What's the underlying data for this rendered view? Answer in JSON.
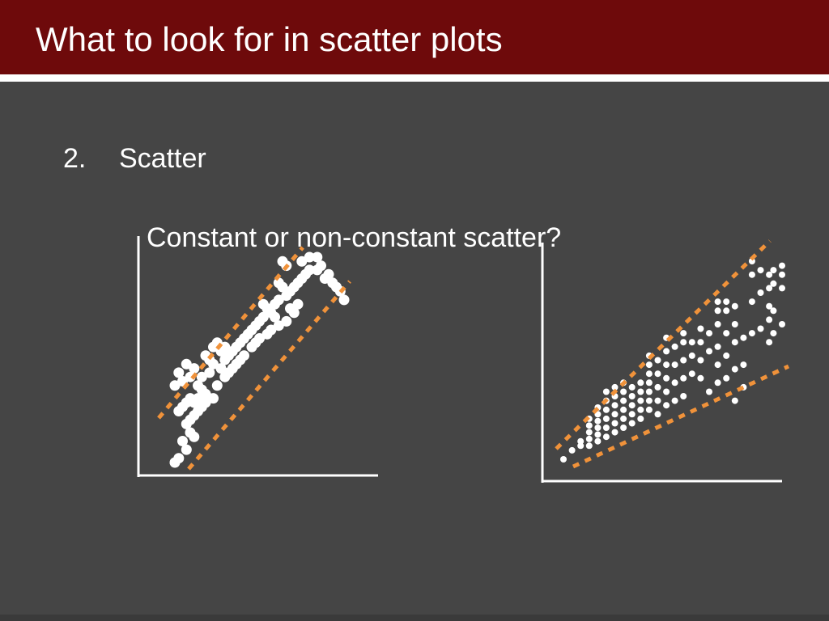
{
  "slide": {
    "title": "What to look for in scatter plots",
    "bullet": {
      "number": "2.",
      "text": "Scatter"
    },
    "question": "Constant or non-constant scatter?"
  },
  "colors": {
    "title_bar": "#6e0a0b",
    "background": "#454545",
    "points": "#ffffff",
    "envelope": "#f0923a",
    "axes": "#ffffff"
  },
  "chart_data": [
    {
      "type": "scatter",
      "title": "",
      "xlabel": "",
      "ylabel": "",
      "grid": false,
      "envelope": "parallel dashed lines (constant scatter)",
      "points": [
        [
          4,
          4
        ],
        [
          6,
          6
        ],
        [
          10,
          10
        ],
        [
          8,
          14
        ],
        [
          14,
          16
        ],
        [
          12,
          18
        ],
        [
          10,
          22
        ],
        [
          12,
          24
        ],
        [
          14,
          26
        ],
        [
          16,
          28
        ],
        [
          18,
          30
        ],
        [
          20,
          32
        ],
        [
          22,
          34
        ],
        [
          24,
          34
        ],
        [
          6,
          28
        ],
        [
          8,
          30
        ],
        [
          10,
          32
        ],
        [
          14,
          32
        ],
        [
          16,
          34
        ],
        [
          20,
          36
        ],
        [
          18,
          38
        ],
        [
          12,
          34
        ],
        [
          4,
          40
        ],
        [
          8,
          42
        ],
        [
          12,
          44
        ],
        [
          16,
          40
        ],
        [
          18,
          44
        ],
        [
          22,
          46
        ],
        [
          24,
          50
        ],
        [
          28,
          48
        ],
        [
          30,
          52
        ],
        [
          32,
          54
        ],
        [
          28,
          56
        ],
        [
          30,
          58
        ],
        [
          34,
          56
        ],
        [
          36,
          58
        ],
        [
          38,
          60
        ],
        [
          40,
          62
        ],
        [
          42,
          64
        ],
        [
          44,
          66
        ],
        [
          46,
          68
        ],
        [
          48,
          70
        ],
        [
          50,
          72
        ],
        [
          54,
          74
        ],
        [
          56,
          72
        ],
        [
          52,
          76
        ],
        [
          50,
          78
        ],
        [
          56,
          78
        ],
        [
          58,
          80
        ],
        [
          62,
          82
        ],
        [
          64,
          84
        ],
        [
          60,
          86
        ],
        [
          58,
          88
        ],
        [
          66,
          86
        ],
        [
          68,
          88
        ],
        [
          70,
          90
        ],
        [
          72,
          92
        ],
        [
          74,
          94
        ],
        [
          78,
          94
        ],
        [
          80,
          96
        ],
        [
          82,
          90
        ],
        [
          84,
          92
        ],
        [
          86,
          88
        ],
        [
          88,
          86
        ],
        [
          90,
          84
        ],
        [
          92,
          80
        ],
        [
          70,
          98
        ],
        [
          74,
          100
        ],
        [
          78,
          100
        ],
        [
          24,
          58
        ],
        [
          26,
          60
        ],
        [
          20,
          54
        ],
        [
          22,
          52
        ],
        [
          34,
          48
        ],
        [
          36,
          50
        ],
        [
          38,
          52
        ],
        [
          40,
          54
        ],
        [
          44,
          58
        ],
        [
          46,
          60
        ],
        [
          48,
          62
        ],
        [
          52,
          64
        ],
        [
          54,
          66
        ],
        [
          58,
          68
        ],
        [
          62,
          70
        ],
        [
          66,
          74
        ],
        [
          30,
          44
        ],
        [
          32,
          46
        ],
        [
          26,
          40
        ],
        [
          14,
          48
        ],
        [
          10,
          50
        ],
        [
          6,
          46
        ],
        [
          62,
          96
        ],
        [
          60,
          98
        ],
        [
          64,
          76
        ],
        [
          68,
          78
        ]
      ]
    },
    {
      "type": "scatter",
      "title": "",
      "xlabel": "",
      "ylabel": "",
      "grid": false,
      "envelope": "diverging dashed lines (non-constant scatter)",
      "points": [
        [
          2,
          4
        ],
        [
          6,
          8
        ],
        [
          10,
          10
        ],
        [
          10,
          12
        ],
        [
          14,
          10
        ],
        [
          14,
          13
        ],
        [
          14,
          16
        ],
        [
          14,
          19
        ],
        [
          14,
          22
        ],
        [
          18,
          12
        ],
        [
          18,
          15
        ],
        [
          18,
          18
        ],
        [
          18,
          21
        ],
        [
          18,
          24
        ],
        [
          18,
          27
        ],
        [
          22,
          14
        ],
        [
          22,
          18
        ],
        [
          22,
          22
        ],
        [
          22,
          26
        ],
        [
          22,
          30
        ],
        [
          22,
          34
        ],
        [
          26,
          16
        ],
        [
          26,
          20
        ],
        [
          26,
          24
        ],
        [
          26,
          28
        ],
        [
          26,
          32
        ],
        [
          26,
          36
        ],
        [
          30,
          18
        ],
        [
          30,
          22
        ],
        [
          30,
          26
        ],
        [
          30,
          30
        ],
        [
          30,
          34
        ],
        [
          30,
          38
        ],
        [
          34,
          20
        ],
        [
          34,
          24
        ],
        [
          34,
          28
        ],
        [
          34,
          32
        ],
        [
          34,
          36
        ],
        [
          38,
          22
        ],
        [
          38,
          26
        ],
        [
          38,
          30
        ],
        [
          38,
          34
        ],
        [
          38,
          38
        ],
        [
          42,
          26
        ],
        [
          42,
          30
        ],
        [
          42,
          34
        ],
        [
          42,
          38
        ],
        [
          42,
          42
        ],
        [
          42,
          46
        ],
        [
          42,
          50
        ],
        [
          46,
          24
        ],
        [
          46,
          30
        ],
        [
          46,
          36
        ],
        [
          46,
          42
        ],
        [
          46,
          48
        ],
        [
          50,
          28
        ],
        [
          50,
          34
        ],
        [
          50,
          40
        ],
        [
          50,
          46
        ],
        [
          50,
          52
        ],
        [
          50,
          58
        ],
        [
          54,
          30
        ],
        [
          54,
          38
        ],
        [
          54,
          46
        ],
        [
          54,
          54
        ],
        [
          58,
          32
        ],
        [
          58,
          40
        ],
        [
          58,
          48
        ],
        [
          58,
          56
        ],
        [
          58,
          60
        ],
        [
          62,
          42
        ],
        [
          62,
          50
        ],
        [
          62,
          56
        ],
        [
          66,
          40
        ],
        [
          66,
          48
        ],
        [
          66,
          56
        ],
        [
          66,
          62
        ],
        [
          70,
          34
        ],
        [
          70,
          52
        ],
        [
          70,
          60
        ],
        [
          74,
          38
        ],
        [
          74,
          46
        ],
        [
          74,
          54
        ],
        [
          74,
          64
        ],
        [
          74,
          70
        ],
        [
          74,
          74
        ],
        [
          78,
          40
        ],
        [
          78,
          50
        ],
        [
          78,
          60
        ],
        [
          78,
          70
        ],
        [
          78,
          74
        ],
        [
          82,
          30
        ],
        [
          82,
          44
        ],
        [
          82,
          56
        ],
        [
          82,
          64
        ],
        [
          82,
          72
        ],
        [
          86,
          36
        ],
        [
          86,
          46
        ],
        [
          86,
          58
        ],
        [
          90,
          60
        ],
        [
          90,
          74
        ],
        [
          90,
          86
        ],
        [
          90,
          92
        ],
        [
          94,
          62
        ],
        [
          94,
          78
        ],
        [
          94,
          88
        ],
        [
          98,
          56
        ],
        [
          98,
          66
        ],
        [
          98,
          72
        ],
        [
          98,
          80
        ],
        [
          98,
          86
        ],
        [
          100,
          60
        ],
        [
          100,
          70
        ],
        [
          100,
          82
        ],
        [
          100,
          88
        ],
        [
          104,
          64
        ],
        [
          104,
          80
        ],
        [
          104,
          86
        ],
        [
          104,
          90
        ]
      ]
    }
  ]
}
